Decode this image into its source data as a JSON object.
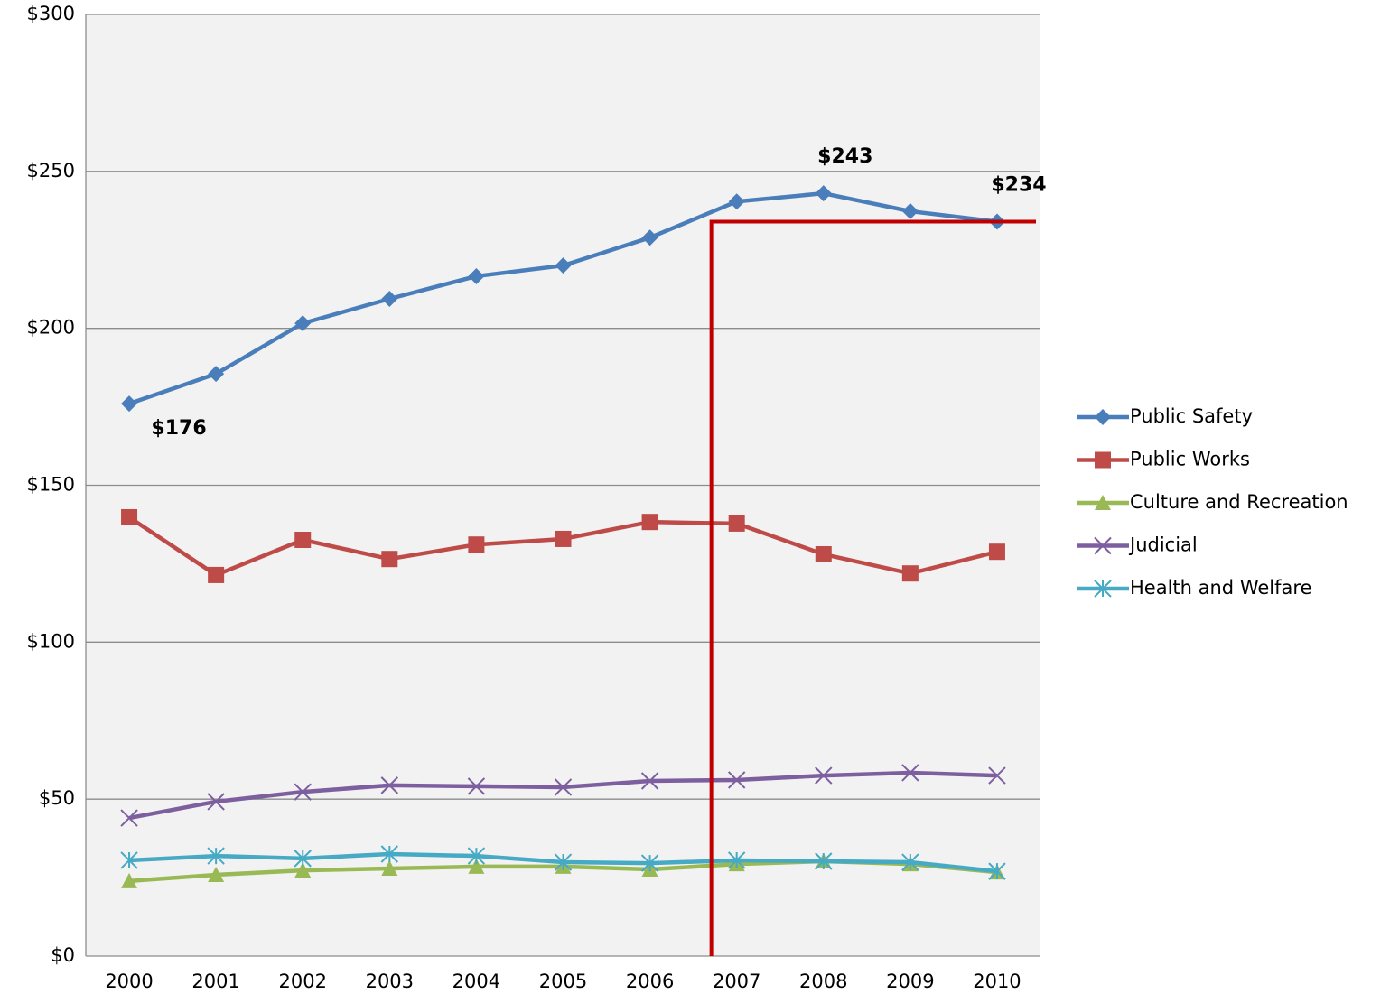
{
  "chart_data": {
    "type": "line",
    "categories": [
      "2000",
      "2001",
      "2002",
      "2003",
      "2004",
      "2005",
      "2006",
      "2007",
      "2008",
      "2009",
      "2010"
    ],
    "series": [
      {
        "name": "Public Safety",
        "color": "#4a7ebb",
        "marker": "diamond",
        "values": [
          176,
          185.5,
          201.6,
          209.4,
          216.6,
          220,
          228.9,
          240.4,
          243,
          237.3,
          234
        ],
        "value_labels": [
          "$176",
          null,
          null,
          null,
          null,
          null,
          null,
          null,
          "$243",
          null,
          "$234"
        ]
      },
      {
        "name": "Public Works",
        "color": "#be4b48",
        "marker": "square",
        "values": [
          139.8,
          121.4,
          132.6,
          126.5,
          131.1,
          132.9,
          138.3,
          137.8,
          128,
          121.9,
          128.8
        ]
      },
      {
        "name": "Culture and Recreation",
        "color": "#98b954",
        "marker": "triangle",
        "values": [
          23.9,
          25.9,
          27.3,
          27.9,
          28.5,
          28.5,
          27.6,
          29.3,
          30.2,
          29.3,
          26.7
        ]
      },
      {
        "name": "Judicial",
        "color": "#7d5fa0",
        "marker": "x",
        "values": [
          44,
          49.2,
          52.3,
          54.4,
          54.1,
          53.8,
          55.8,
          56.1,
          57.5,
          58.4,
          57.5
        ]
      },
      {
        "name": "Health and Welfare",
        "color": "#46aac5",
        "marker": "asterisk",
        "values": [
          30.5,
          31.9,
          31.1,
          32.5,
          31.9,
          29.9,
          29.6,
          30.5,
          30.2,
          29.9,
          27
        ]
      }
    ],
    "ylim": [
      0,
      300
    ],
    "yticks": [
      {
        "value": 0,
        "label": "$0"
      },
      {
        "value": 50,
        "label": "$50"
      },
      {
        "value": 100,
        "label": "$100"
      },
      {
        "value": 150,
        "label": "$150"
      },
      {
        "value": 200,
        "label": "$200"
      },
      {
        "value": 250,
        "label": "$250"
      },
      {
        "value": 300,
        "label": "$300"
      }
    ],
    "grid": true,
    "legend": "right",
    "reference_line": {
      "y": 234,
      "start_category": "2007",
      "color": "#c00000"
    }
  }
}
